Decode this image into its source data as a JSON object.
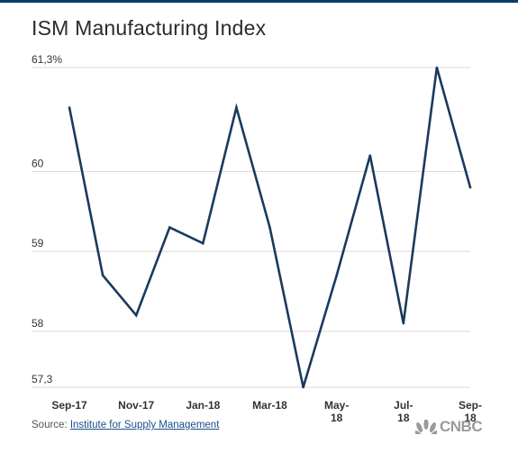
{
  "header": {
    "title": "ISM Manufacturing Index"
  },
  "source": {
    "prefix": "Source: ",
    "link_text": "Institute for Supply Management"
  },
  "brand": {
    "logo_text": "CNBC",
    "logo_icon": "nbc-peacock-icon"
  },
  "colors": {
    "line": "#1b3a5c",
    "grid": "#d9d9d9",
    "top_rule": "#0b3d6e",
    "link": "#1a4f8a"
  },
  "chart_data": {
    "type": "line",
    "title": "ISM Manufacturing Index",
    "xlabel": "",
    "ylabel": "",
    "grid": true,
    "ylim": [
      57.3,
      61.3
    ],
    "y_ticks": [
      {
        "value": 61.3,
        "label": "61,3%"
      },
      {
        "value": 60,
        "label": "60"
      },
      {
        "value": 59,
        "label": "59"
      },
      {
        "value": 58,
        "label": "58"
      },
      {
        "value": 57.3,
        "label": "57,3"
      }
    ],
    "x_ticks": [
      {
        "index": 0,
        "lines": [
          "Sep-17"
        ]
      },
      {
        "index": 2,
        "lines": [
          "Nov-17"
        ]
      },
      {
        "index": 4,
        "lines": [
          "Jan-18"
        ]
      },
      {
        "index": 6,
        "lines": [
          "Mar-18"
        ]
      },
      {
        "index": 8,
        "lines": [
          "May-",
          "18"
        ]
      },
      {
        "index": 10,
        "lines": [
          "Jul-",
          "18"
        ]
      },
      {
        "index": 12,
        "lines": [
          "Sep-",
          "18"
        ]
      }
    ],
    "x": [
      "Sep-17",
      "Oct-17",
      "Nov-17",
      "Dec-17",
      "Jan-18",
      "Feb-18",
      "Mar-18",
      "Apr-18",
      "May-18",
      "Jun-18",
      "Jul-18",
      "Aug-18",
      "Sep-18"
    ],
    "series": [
      {
        "values": [
          60.8,
          58.7,
          58.2,
          59.3,
          59.1,
          60.8,
          59.3,
          57.3,
          58.7,
          60.2,
          58.1,
          61.3,
          59.8
        ]
      }
    ]
  }
}
